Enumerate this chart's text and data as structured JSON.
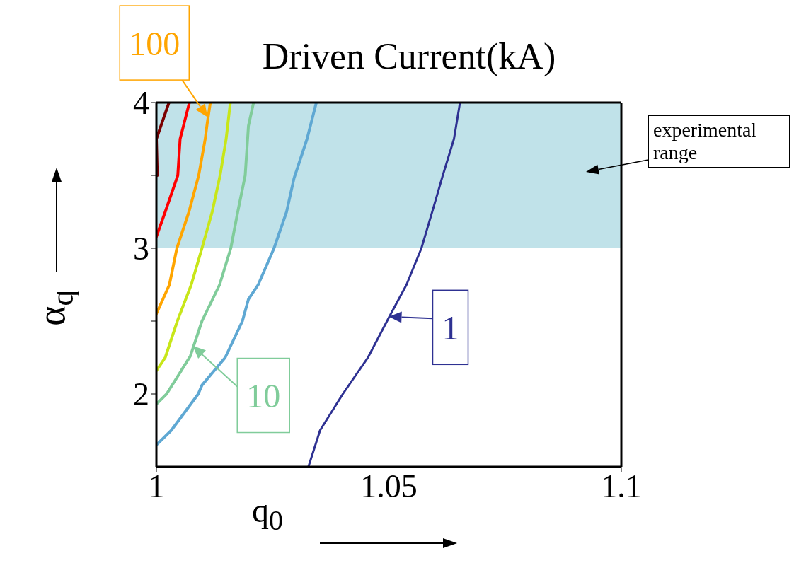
{
  "chart_data": {
    "type": "line",
    "title": "Driven Current(kA)",
    "xlabel": "q$_{0}$",
    "ylabel": "α$_{q}$",
    "xlim": [
      1,
      1.1
    ],
    "xticks": [
      1,
      1.05,
      1.1
    ],
    "ylim": [
      1.5,
      4
    ],
    "yticks": [
      2,
      {
        "value": 2.5,
        "label": null
      },
      3,
      {
        "value": 3.5,
        "label": null
      },
      4
    ],
    "grid": false,
    "legend": false,
    "line_style": "solid",
    "bands": [
      {
        "axis": "y",
        "from": 3,
        "to": 4,
        "label": "experimental range",
        "color": "#c0e2e9"
      }
    ],
    "annotations": [
      {
        "text": "100",
        "x": 1.011,
        "y": 3.9
      },
      {
        "text": "10",
        "x": 1.0078,
        "y": 2.33
      },
      {
        "text": "1",
        "x": 1.05,
        "y": 2.53
      }
    ],
    "series": [
      {
        "color": "#7a0000",
        "x": [
          1.0027,
          1.0,
          1.0002
        ],
        "values": [
          4,
          3.75,
          3.5
        ]
      },
      {
        "color": "#ff0000",
        "x": [
          1.0071,
          1.0051,
          1.0046,
          1.0019,
          1.0
        ],
        "values": [
          4,
          3.75,
          3.5,
          3.25,
          3.08
        ]
      },
      {
        "color": "#ffa500",
        "x": [
          1.0116,
          1.0109,
          1.0105,
          1.0091,
          1.007,
          1.0044,
          1.0028,
          1.0
        ],
        "values": [
          4,
          3.85,
          3.75,
          3.5,
          3.25,
          3,
          2.75,
          2.55
        ]
      },
      {
        "color": "#c8e619",
        "x": [
          1.0159,
          1.015,
          1.0137,
          1.012,
          1.0098,
          1.0075,
          1.0045,
          1.0019,
          1.0
        ],
        "values": [
          4,
          3.75,
          3.5,
          3.25,
          3,
          2.75,
          2.5,
          2.25,
          2.16
        ]
      },
      {
        "color": "#80cc9a",
        "x": [
          1.0209,
          1.0198,
          1.0191,
          1.0175,
          1.016,
          1.0136,
          1.0098,
          1.0073,
          1.0022,
          1.0
        ],
        "values": [
          4,
          3.84,
          3.5,
          3.25,
          3,
          2.75,
          2.5,
          2.26,
          2,
          1.93
        ]
      },
      {
        "color": "#5fa8d3",
        "x": [
          1.0344,
          1.0324,
          1.0296,
          1.028,
          1.0253,
          1.0219,
          1.0198,
          1.0185,
          1.0148,
          1.0098,
          1.009,
          1.0032,
          1.0
        ],
        "values": [
          4,
          3.75,
          3.48,
          3.25,
          3,
          2.75,
          2.65,
          2.5,
          2.25,
          2.06,
          2,
          1.75,
          1.65
        ]
      },
      {
        "color": "#2e3192",
        "x": [
          1.0653,
          1.064,
          1.0616,
          1.0596,
          1.057,
          1.0538,
          1.0501,
          1.0455,
          1.0401,
          1.0352,
          1.0327
        ],
        "values": [
          4,
          3.75,
          3.5,
          3.28,
          3,
          2.75,
          2.53,
          2.25,
          2,
          1.75,
          1.5
        ]
      }
    ]
  }
}
